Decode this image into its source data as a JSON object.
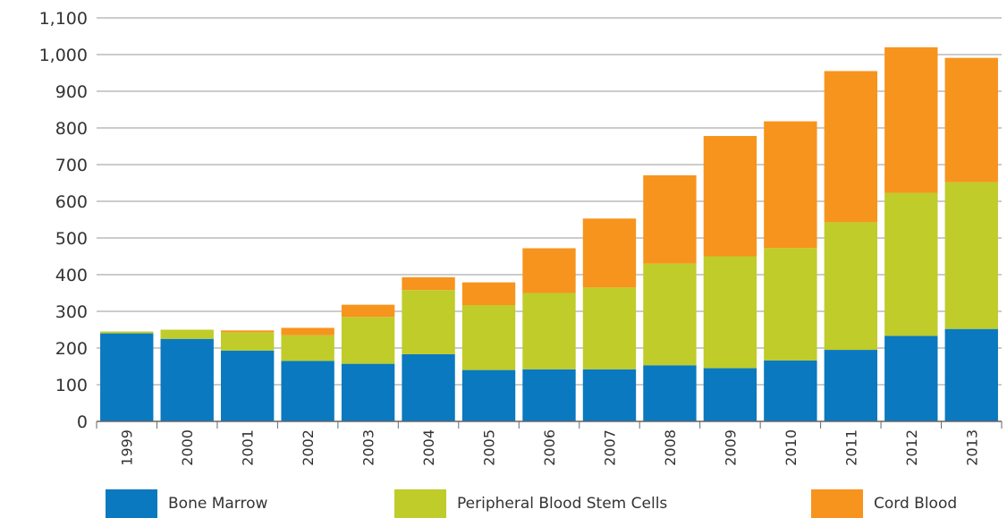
{
  "chart_data": {
    "type": "bar",
    "stacked": true,
    "categories": [
      "1999",
      "2000",
      "2001",
      "2002",
      "2003",
      "2004",
      "2005",
      "2006",
      "2007",
      "2008",
      "2009",
      "2010",
      "2011",
      "2012",
      "2013"
    ],
    "series": [
      {
        "name": "Bone Marrow",
        "color": "#0a79bf",
        "values": [
          240,
          225,
          193,
          165,
          157,
          183,
          140,
          142,
          142,
          153,
          145,
          166,
          195,
          233,
          252
        ]
      },
      {
        "name": "Peripheral Blood Stem Cells",
        "color": "#bfcc2a",
        "values": [
          5,
          25,
          50,
          70,
          128,
          175,
          177,
          208,
          223,
          277,
          305,
          307,
          348,
          390,
          400
        ]
      },
      {
        "name": "Cord Blood",
        "color": "#f7941d",
        "values": [
          0,
          0,
          5,
          20,
          33,
          35,
          62,
          122,
          188,
          241,
          328,
          345,
          412,
          397,
          339
        ]
      }
    ],
    "ylim": [
      0,
      1100
    ],
    "yticks": [
      "0",
      "100",
      "200",
      "300",
      "400",
      "500",
      "600",
      "700",
      "800",
      "900",
      "1,000",
      "1,100"
    ],
    "ytick_values": [
      0,
      100,
      200,
      300,
      400,
      500,
      600,
      700,
      800,
      900,
      1000,
      1100
    ],
    "grid": true,
    "legend_position": "bottom",
    "title": "",
    "xlabel": "",
    "ylabel": ""
  }
}
